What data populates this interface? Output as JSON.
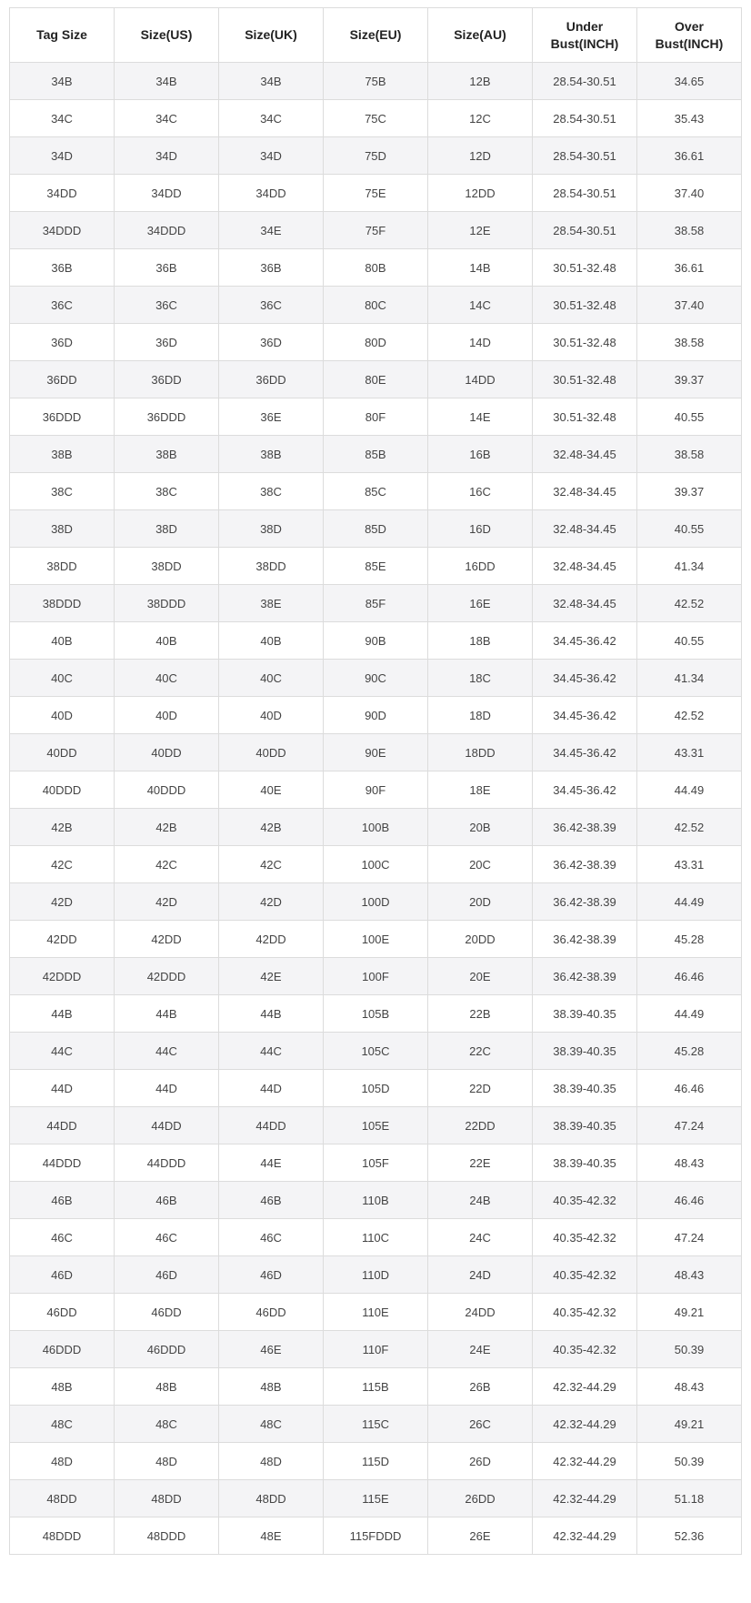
{
  "headers": [
    "Tag Size",
    "Size(US)",
    "Size(UK)",
    "Size(EU)",
    "Size(AU)",
    "Under Bust(INCH)",
    "Over Bust(INCH)"
  ],
  "rows": [
    [
      "34B",
      "34B",
      "34B",
      "75B",
      "12B",
      "28.54-30.51",
      "34.65"
    ],
    [
      "34C",
      "34C",
      "34C",
      "75C",
      "12C",
      "28.54-30.51",
      "35.43"
    ],
    [
      "34D",
      "34D",
      "34D",
      "75D",
      "12D",
      "28.54-30.51",
      "36.61"
    ],
    [
      "34DD",
      "34DD",
      "34DD",
      "75E",
      "12DD",
      "28.54-30.51",
      "37.40"
    ],
    [
      "34DDD",
      "34DDD",
      "34E",
      "75F",
      "12E",
      "28.54-30.51",
      "38.58"
    ],
    [
      "36B",
      "36B",
      "36B",
      "80B",
      "14B",
      "30.51-32.48",
      "36.61"
    ],
    [
      "36C",
      "36C",
      "36C",
      "80C",
      "14C",
      "30.51-32.48",
      "37.40"
    ],
    [
      "36D",
      "36D",
      "36D",
      "80D",
      "14D",
      "30.51-32.48",
      "38.58"
    ],
    [
      "36DD",
      "36DD",
      "36DD",
      "80E",
      "14DD",
      "30.51-32.48",
      "39.37"
    ],
    [
      "36DDD",
      "36DDD",
      "36E",
      "80F",
      "14E",
      "30.51-32.48",
      "40.55"
    ],
    [
      "38B",
      "38B",
      "38B",
      "85B",
      "16B",
      "32.48-34.45",
      "38.58"
    ],
    [
      "38C",
      "38C",
      "38C",
      "85C",
      "16C",
      "32.48-34.45",
      "39.37"
    ],
    [
      "38D",
      "38D",
      "38D",
      "85D",
      "16D",
      "32.48-34.45",
      "40.55"
    ],
    [
      "38DD",
      "38DD",
      "38DD",
      "85E",
      "16DD",
      "32.48-34.45",
      "41.34"
    ],
    [
      "38DDD",
      "38DDD",
      "38E",
      "85F",
      "16E",
      "32.48-34.45",
      "42.52"
    ],
    [
      "40B",
      "40B",
      "40B",
      "90B",
      "18B",
      "34.45-36.42",
      "40.55"
    ],
    [
      "40C",
      "40C",
      "40C",
      "90C",
      "18C",
      "34.45-36.42",
      "41.34"
    ],
    [
      "40D",
      "40D",
      "40D",
      "90D",
      "18D",
      "34.45-36.42",
      "42.52"
    ],
    [
      "40DD",
      "40DD",
      "40DD",
      "90E",
      "18DD",
      "34.45-36.42",
      "43.31"
    ],
    [
      "40DDD",
      "40DDD",
      "40E",
      "90F",
      "18E",
      "34.45-36.42",
      "44.49"
    ],
    [
      "42B",
      "42B",
      "42B",
      "100B",
      "20B",
      "36.42-38.39",
      "42.52"
    ],
    [
      "42C",
      "42C",
      "42C",
      "100C",
      "20C",
      "36.42-38.39",
      "43.31"
    ],
    [
      "42D",
      "42D",
      "42D",
      "100D",
      "20D",
      "36.42-38.39",
      "44.49"
    ],
    [
      "42DD",
      "42DD",
      "42DD",
      "100E",
      "20DD",
      "36.42-38.39",
      "45.28"
    ],
    [
      "42DDD",
      "42DDD",
      "42E",
      "100F",
      "20E",
      "36.42-38.39",
      "46.46"
    ],
    [
      "44B",
      "44B",
      "44B",
      "105B",
      "22B",
      "38.39-40.35",
      "44.49"
    ],
    [
      "44C",
      "44C",
      "44C",
      "105C",
      "22C",
      "38.39-40.35",
      "45.28"
    ],
    [
      "44D",
      "44D",
      "44D",
      "105D",
      "22D",
      "38.39-40.35",
      "46.46"
    ],
    [
      "44DD",
      "44DD",
      "44DD",
      "105E",
      "22DD",
      "38.39-40.35",
      "47.24"
    ],
    [
      "44DDD",
      "44DDD",
      "44E",
      "105F",
      "22E",
      "38.39-40.35",
      "48.43"
    ],
    [
      "46B",
      "46B",
      "46B",
      "110B",
      "24B",
      "40.35-42.32",
      "46.46"
    ],
    [
      "46C",
      "46C",
      "46C",
      "110C",
      "24C",
      "40.35-42.32",
      "47.24"
    ],
    [
      "46D",
      "46D",
      "46D",
      "110D",
      "24D",
      "40.35-42.32",
      "48.43"
    ],
    [
      "46DD",
      "46DD",
      "46DD",
      "110E",
      "24DD",
      "40.35-42.32",
      "49.21"
    ],
    [
      "46DDD",
      "46DDD",
      "46E",
      "110F",
      "24E",
      "40.35-42.32",
      "50.39"
    ],
    [
      "48B",
      "48B",
      "48B",
      "115B",
      "26B",
      "42.32-44.29",
      "48.43"
    ],
    [
      "48C",
      "48C",
      "48C",
      "115C",
      "26C",
      "42.32-44.29",
      "49.21"
    ],
    [
      "48D",
      "48D",
      "48D",
      "115D",
      "26D",
      "42.32-44.29",
      "50.39"
    ],
    [
      "48DD",
      "48DD",
      "48DD",
      "115E",
      "26DD",
      "42.32-44.29",
      "51.18"
    ],
    [
      "48DDD",
      "48DDD",
      "48E",
      "115FDDD",
      "26E",
      "42.32-44.29",
      "52.36"
    ]
  ]
}
